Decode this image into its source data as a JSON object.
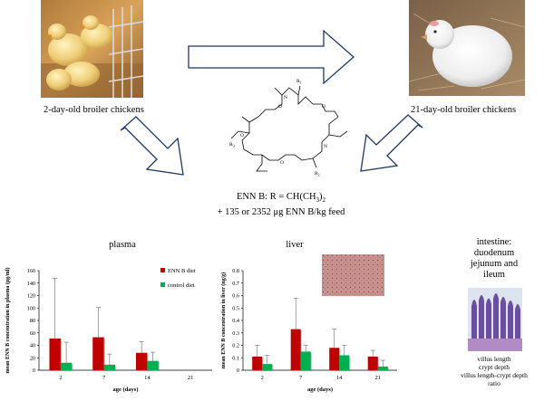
{
  "top": {
    "left_caption": "2-day-old broiler chickens",
    "right_caption": "21-day-old broiler chickens",
    "left_photo_icon": "chicks-photo",
    "right_photo_icon": "grown-chicken-photo"
  },
  "molecule": {
    "r1": "R",
    "r1_sub": "1",
    "r2": "R",
    "r2_sub": "2",
    "r3": "R",
    "r3_sub": "3",
    "n_label": "N",
    "o_label": "O",
    "caption_line1": "ENN B: R = CH(CH",
    "caption_line1_sub": "3",
    "caption_line1_end": ")",
    "caption_line1_sub2": "2",
    "caption_line2": "+  135 or 2352 μg ENN B/kg feed"
  },
  "intestine": {
    "title_lines": [
      "intestine:",
      "duodenum",
      "jejunum  and",
      "ileum"
    ],
    "measures": [
      "villus length",
      "crypt depth",
      "villus length-crypt depth",
      "ratio"
    ]
  },
  "colors": {
    "enn": "#c00000",
    "control": "#00b050",
    "arrow": "#1f3864",
    "bar_shadow": "#888888"
  },
  "chart_data": [
    {
      "type": "bar",
      "title": "plasma",
      "xlabel": "age (days)",
      "ylabel": "mean ENN B concentration in plasma (pg/ml)",
      "categories": [
        "2",
        "7",
        "14",
        "21"
      ],
      "ylim": [
        0,
        160
      ],
      "yticks": [
        "0",
        "20",
        "40",
        "60",
        "80",
        "100",
        "120",
        "140",
        "160"
      ],
      "series": [
        {
          "name": "ENN B diet",
          "values": [
            51,
            53,
            28,
            0
          ],
          "errors": [
            97,
            48,
            18,
            0
          ]
        },
        {
          "name": "control diet",
          "values": [
            12,
            9,
            15,
            0
          ],
          "errors": [
            33,
            17,
            14,
            0
          ]
        }
      ],
      "legend": "top-right"
    },
    {
      "type": "bar",
      "title": "liver",
      "xlabel": "age (days)",
      "ylabel": "mean ENN B concentration in liver (ng/g)",
      "categories": [
        "2",
        "7",
        "14",
        "21"
      ],
      "ylim": [
        0,
        0.8
      ],
      "yticks": [
        "0",
        "0.1",
        "0.2",
        "0.3",
        "0.4",
        "0.5",
        "0.6",
        "0.7",
        "0.8"
      ],
      "series": [
        {
          "name": "",
          "values": [
            0.11,
            0.33,
            0.18,
            0.11
          ],
          "errors": [
            0.09,
            0.25,
            0.15,
            0.05
          ]
        },
        {
          "name": "",
          "values": [
            0.05,
            0.15,
            0.12,
            0.03
          ],
          "errors": [
            0.07,
            0.05,
            0.08,
            0.05
          ]
        }
      ],
      "legend": "none"
    }
  ]
}
